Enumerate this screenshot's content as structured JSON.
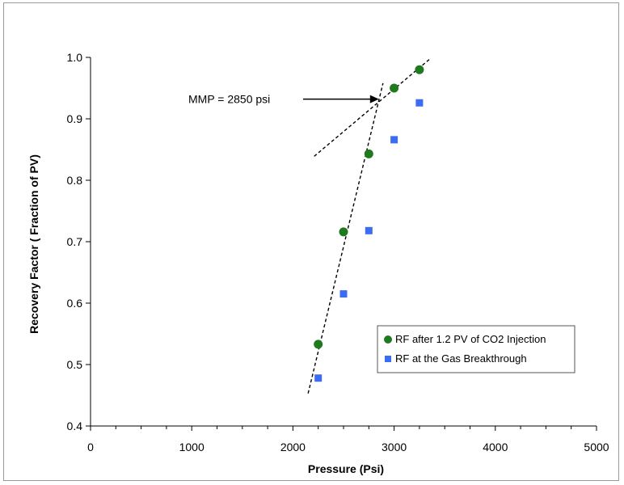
{
  "chart_data": {
    "type": "scatter",
    "title": "",
    "xlabel": "Pressure (Psi)",
    "ylabel": "Recovery Factor ( Fraction of PV)",
    "xlim": [
      0,
      5000
    ],
    "ylim": [
      0.4,
      1.0
    ],
    "x_ticks": [
      0,
      1000,
      2000,
      3000,
      4000,
      5000
    ],
    "y_ticks": [
      "0.4",
      "0.5",
      "0.6",
      "0.7",
      "0.8",
      "0.9",
      "1.0"
    ],
    "grid": false,
    "legend_position": "bottom-right",
    "series": [
      {
        "name": "RF after 1.2 PV of CO2 Injection",
        "marker": "circle",
        "color": "#1f7a1f",
        "x": [
          2250,
          2500,
          2750,
          3000,
          3250
        ],
        "y": [
          0.533,
          0.716,
          0.843,
          0.95,
          0.98
        ]
      },
      {
        "name": "RF at the Gas Breakthrough",
        "marker": "square",
        "color": "#3c6cf0",
        "x": [
          2250,
          2500,
          2750,
          3000,
          3250
        ],
        "y": [
          0.478,
          0.615,
          0.718,
          0.866,
          0.926
        ]
      }
    ],
    "trend_lines": [
      {
        "style": "dashed",
        "x": [
          2150,
          2890
        ],
        "y": [
          0.453,
          0.958
        ]
      },
      {
        "style": "dashed",
        "x": [
          2210,
          3350
        ],
        "y": [
          0.839,
          0.997
        ]
      }
    ],
    "annotations": [
      {
        "text": "MMP = 2850 psi",
        "arrow_to": {
          "x": 2850,
          "y": 0.932
        }
      }
    ]
  }
}
